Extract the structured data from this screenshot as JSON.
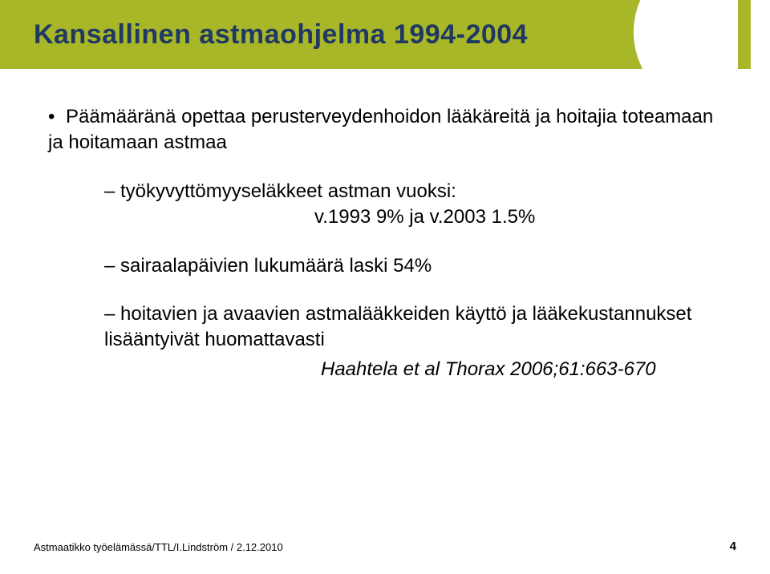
{
  "title": "Kansallinen astmaohjelma 1994-2004",
  "colors": {
    "band": "#a7b727",
    "title_text": "#203864",
    "body_text": "#000000",
    "background": "#ffffff"
  },
  "content": {
    "b1": "Päämääränä opettaa perusterveydenhoidon lääkäreitä ja hoitajia toteamaan ja hoitamaan astmaa",
    "b2a": "työkyvyttömyyseläkkeet astman vuoksi:",
    "b2b": "v.1993 9% ja v.2003 1.5%",
    "b3": "sairaalapäivien lukumäärä laski 54%",
    "b4": "hoitavien ja avaavien astmalääkkeiden käyttö ja lääkekustannukset lisääntyivät huomattavasti",
    "ref": "Haahtela et al Thorax 2006;61:663-670"
  },
  "footer": {
    "left": "Astmaatikko työelämässä/TTL/I.Lindström / 2.12.2010",
    "page": "4"
  }
}
